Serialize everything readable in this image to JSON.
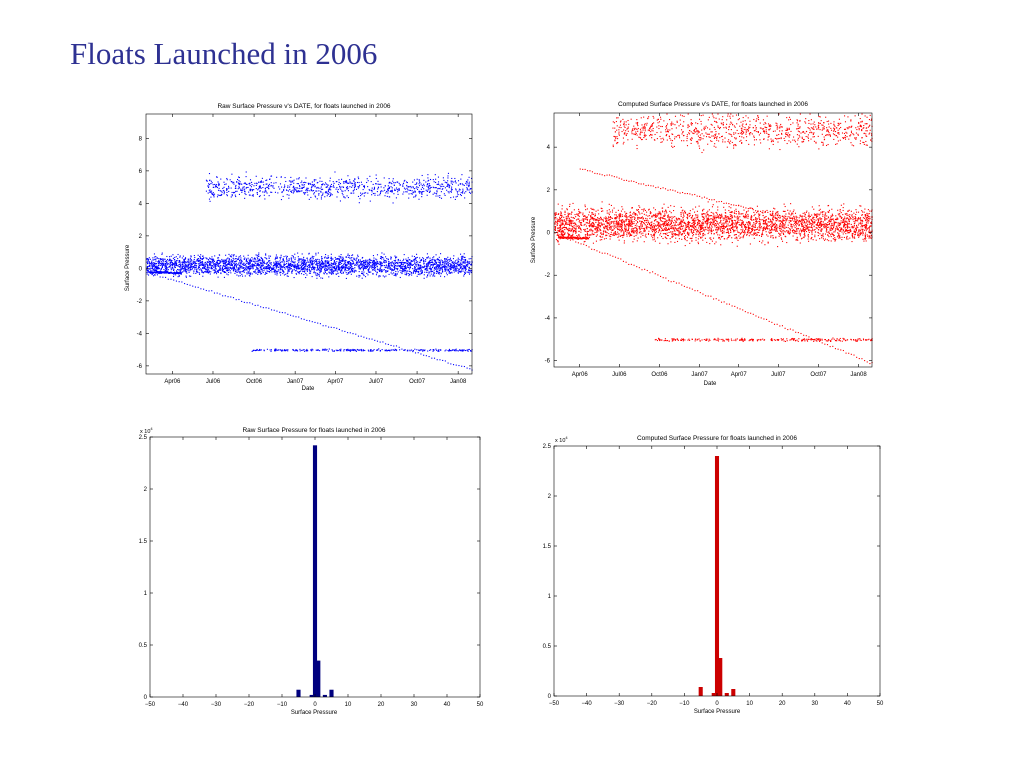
{
  "slide": {
    "title": "Floats Launched in 2006"
  },
  "colors": {
    "title": "#2e3192",
    "raw": "#0000ff",
    "computed": "#ff0000",
    "raw_hist": "#00007f",
    "computed_hist": "#cc0000"
  },
  "chart_data": [
    {
      "id": "raw-scatter",
      "type": "scatter",
      "title": "Raw Surface Pressure v's DATE, for floats launched in 2006",
      "xlabel": "Date",
      "ylabel": "Surface Pressure",
      "x_ticks": [
        "Apr06",
        "Jul06",
        "Oct06",
        "Jan07",
        "Apr07",
        "Jul07",
        "Oct07",
        "Jan08"
      ],
      "x_range": [
        "2006-02-01",
        "2008-02-01"
      ],
      "y_ticks": [
        -6,
        -4,
        -2,
        0,
        2,
        4,
        6,
        8
      ],
      "ylim": [
        -6.5,
        9.5
      ],
      "grid": false,
      "color": "#0000ff",
      "clusters": [
        {
          "name": "main band",
          "x": [
            "2006-02-01",
            "2008-02-01"
          ],
          "y_center": 0.2,
          "y_spread": 0.45,
          "density": 3000
        },
        {
          "name": "upper band",
          "x": [
            "2006-06-15",
            "2008-02-01"
          ],
          "y_center": 5.0,
          "y_spread": 0.5,
          "density": 900
        },
        {
          "name": "lower line",
          "x": [
            "2006-09-20",
            "2008-02-01"
          ],
          "y_center": -5.0,
          "y_spread": 0.05,
          "density": 260
        }
      ],
      "trends": [
        {
          "x": [
            "2006-02-01",
            "2008-02-01"
          ],
          "y": [
            -0.2,
            -6.2
          ]
        },
        {
          "x": [
            "2006-02-10",
            "2006-04-20"
          ],
          "y": [
            -0.2,
            -0.25
          ]
        }
      ]
    },
    {
      "id": "computed-scatter",
      "type": "scatter",
      "title": "Computed Surface Pressure v's DATE, for floats launched in 2006",
      "xlabel": "Date",
      "ylabel": "Surface Pressure",
      "x_ticks": [
        "Apr06",
        "Jul06",
        "Oct06",
        "Jan07",
        "Apr07",
        "Jul07",
        "Oct07",
        "Jan08"
      ],
      "x_range": [
        "2006-02-01",
        "2008-02-01"
      ],
      "y_ticks": [
        -6,
        -4,
        -2,
        0,
        2,
        4
      ],
      "ylim": [
        -6.3,
        5.6
      ],
      "grid": false,
      "color": "#ff0000",
      "clusters": [
        {
          "name": "main band",
          "x": [
            "2006-02-01",
            "2008-02-01"
          ],
          "y_center": 0.4,
          "y_spread": 0.55,
          "density": 3200
        },
        {
          "name": "upper band",
          "x": [
            "2006-06-15",
            "2008-02-01"
          ],
          "y_center": 4.8,
          "y_spread": 0.55,
          "density": 900
        },
        {
          "name": "lower line",
          "x": [
            "2006-09-20",
            "2008-02-01"
          ],
          "y_center": -5.0,
          "y_spread": 0.05,
          "density": 260
        }
      ],
      "trends": [
        {
          "x": [
            "2006-02-01",
            "2008-02-01"
          ],
          "y": [
            0.0,
            -6.1
          ]
        },
        {
          "x": [
            "2006-04-01",
            "2008-02-01"
          ],
          "y": [
            3.0,
            -0.2
          ]
        },
        {
          "x": [
            "2006-02-10",
            "2006-04-20"
          ],
          "y": [
            -0.2,
            -0.25
          ]
        }
      ]
    },
    {
      "id": "raw-hist",
      "type": "bar",
      "title": "Raw Surface Pressure for floats launched in 2006",
      "xlabel": "Surface Pressure",
      "ylabel": "",
      "x_ticks": [
        -50,
        -40,
        -30,
        -20,
        -10,
        0,
        10,
        20,
        30,
        40,
        50
      ],
      "y_ticks": [
        0,
        0.5,
        1,
        1.5,
        2,
        2.5
      ],
      "y_tick_labels": [
        "0",
        "0.5",
        "1",
        "1.5",
        "2",
        "2.5"
      ],
      "y_exponent": "x 10",
      "y_exponent_power": "4",
      "xlim": [
        -50,
        50
      ],
      "ylim": [
        0,
        2.5
      ],
      "color": "#00007f",
      "bins": [
        {
          "x": -5,
          "value": 0.07
        },
        {
          "x": -1,
          "value": 0.02
        },
        {
          "x": 0,
          "value": 2.42
        },
        {
          "x": 1,
          "value": 0.35
        },
        {
          "x": 3,
          "value": 0.02
        },
        {
          "x": 5,
          "value": 0.07
        }
      ]
    },
    {
      "id": "computed-hist",
      "type": "bar",
      "title": "Computed Surface Pressure for floats launched in 2006",
      "xlabel": "Surface Pressure",
      "ylabel": "",
      "x_ticks": [
        -50,
        -40,
        -30,
        -20,
        -10,
        0,
        10,
        20,
        30,
        40,
        50
      ],
      "y_ticks": [
        0,
        0.5,
        1,
        1.5,
        2,
        2.5
      ],
      "y_tick_labels": [
        "0",
        "0.5",
        "1",
        "1.5",
        "2",
        "2.5"
      ],
      "y_exponent": "x 10",
      "y_exponent_power": "4",
      "xlim": [
        -50,
        50
      ],
      "ylim": [
        0,
        2.5
      ],
      "color": "#cc0000",
      "bins": [
        {
          "x": -5,
          "value": 0.09
        },
        {
          "x": -1,
          "value": 0.03
        },
        {
          "x": 0,
          "value": 2.4
        },
        {
          "x": 1,
          "value": 0.38
        },
        {
          "x": 3,
          "value": 0.03
        },
        {
          "x": 5,
          "value": 0.07
        }
      ]
    }
  ]
}
